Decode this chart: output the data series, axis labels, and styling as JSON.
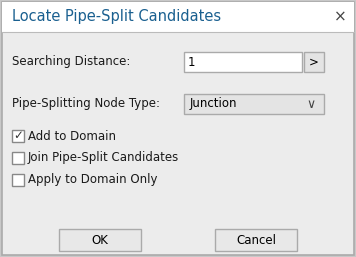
{
  "title": "Locate Pipe-Split Candidates",
  "close_btn": "×",
  "outer_bg": "#c8c8c8",
  "dialog_bg": "#ececec",
  "title_bg": "#ffffff",
  "title_color": "#1a6090",
  "body_bg": "#ececec",
  "label_color": "#1a1a1a",
  "fields": [
    {
      "label": "Searching Distance:",
      "value": "1",
      "has_btn": true,
      "btn_label": ">"
    },
    {
      "label": "Pipe-Splitting Node Type:",
      "value": "Junction",
      "has_btn": false,
      "is_dropdown": true
    }
  ],
  "checkboxes": [
    {
      "label": "Add to Domain",
      "checked": true
    },
    {
      "label": "Join Pipe-Split Candidates",
      "checked": false
    },
    {
      "label": "Apply to Domain Only",
      "checked": false
    }
  ],
  "buttons": [
    "OK",
    "Cancel"
  ],
  "font_size": 8.5,
  "title_font_size": 10.5
}
